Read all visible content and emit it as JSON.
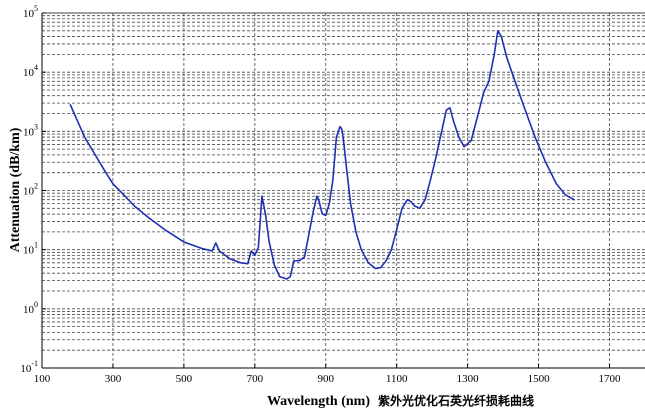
{
  "chart_data": {
    "type": "line",
    "title": "",
    "xlabel": "Wavelength (nm)",
    "ylabel": "Attenuation (dB/km)",
    "caption": "紫外光优化石英光纤损耗曲线",
    "x_scale": "linear",
    "y_scale": "log",
    "xlim": [
      100,
      1800
    ],
    "ylim": [
      0.1,
      100000
    ],
    "x_ticks": [
      100,
      300,
      500,
      700,
      900,
      1100,
      1300,
      1500,
      1700
    ],
    "x_tick_labels": [
      "100",
      "300",
      "500",
      "700",
      "900",
      "1100",
      "1300",
      "1500",
      "1700"
    ],
    "y_ticks": [
      0.1,
      1,
      10,
      100,
      1000,
      10000,
      100000
    ],
    "y_tick_labels": [
      {
        "base": "10",
        "exp": "-1"
      },
      {
        "base": "10",
        "exp": "0"
      },
      {
        "base": "10",
        "exp": "1"
      },
      {
        "base": "10",
        "exp": "2"
      },
      {
        "base": "10",
        "exp": "3"
      },
      {
        "base": "10",
        "exp": "4"
      },
      {
        "base": "10",
        "exp": "5"
      }
    ],
    "grid": true,
    "legend": false,
    "colors": {
      "line": "#1e2fb4",
      "grid": "#4a4a4a",
      "axis": "#000000",
      "background": "#ffffff"
    },
    "series": [
      {
        "x": [
          180,
          200,
          220,
          250,
          280,
          300,
          330,
          360,
          400,
          450,
          500,
          550,
          580,
          590,
          600,
          630,
          660,
          680,
          690,
          700,
          710,
          720,
          730,
          740,
          755,
          770,
          790,
          800,
          810,
          825,
          840,
          855,
          865,
          875,
          880,
          890,
          900,
          910,
          920,
          930,
          940,
          945,
          950,
          960,
          970,
          985,
          1000,
          1020,
          1040,
          1055,
          1070,
          1085,
          1100,
          1115,
          1130,
          1140,
          1150,
          1165,
          1180,
          1195,
          1210,
          1225,
          1240,
          1250,
          1260,
          1275,
          1290,
          1310,
          1330,
          1345,
          1360,
          1375,
          1385,
          1395,
          1410,
          1430,
          1460,
          1490,
          1520,
          1550,
          1575,
          1600
        ],
        "y": [
          2800,
          1500,
          800,
          400,
          200,
          130,
          85,
          55,
          35,
          21,
          13.5,
          10.5,
          9.5,
          13,
          9.5,
          7,
          6,
          5.8,
          9.5,
          8,
          11,
          80,
          40,
          14,
          5.5,
          3.5,
          3.2,
          3.5,
          6.5,
          6.5,
          7.5,
          22,
          45,
          80,
          70,
          40,
          38,
          60,
          150,
          800,
          1200,
          1100,
          700,
          200,
          60,
          20,
          10,
          6,
          4.8,
          5,
          6.5,
          10,
          22,
          50,
          70,
          65,
          55,
          50,
          70,
          150,
          350,
          900,
          2300,
          2500,
          1500,
          800,
          550,
          700,
          2000,
          4500,
          7000,
          20000,
          50000,
          40000,
          18000,
          8000,
          2500,
          800,
          300,
          130,
          85,
          70
        ]
      }
    ]
  }
}
